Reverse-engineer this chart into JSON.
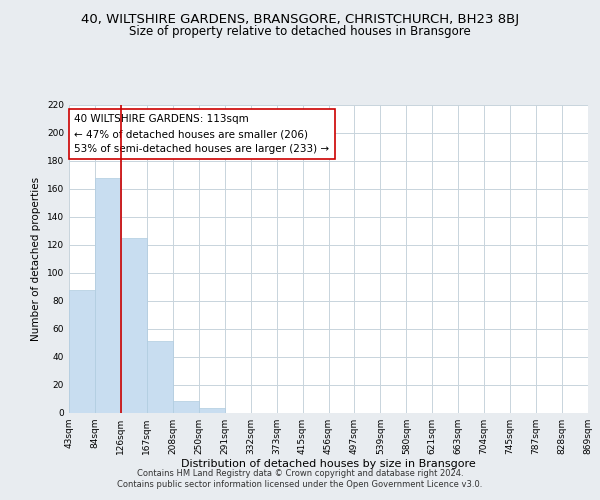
{
  "title": "40, WILTSHIRE GARDENS, BRANSGORE, CHRISTCHURCH, BH23 8BJ",
  "subtitle": "Size of property relative to detached houses in Bransgore",
  "xlabel": "Distribution of detached houses by size in Bransgore",
  "ylabel": "Number of detached properties",
  "bar_values": [
    88,
    168,
    125,
    51,
    8,
    3,
    0,
    0,
    0,
    0,
    0,
    0,
    0,
    0,
    0,
    0,
    0,
    0,
    0,
    0
  ],
  "bar_labels": [
    "43sqm",
    "84sqm",
    "126sqm",
    "167sqm",
    "208sqm",
    "250sqm",
    "291sqm",
    "332sqm",
    "373sqm",
    "415sqm",
    "456sqm",
    "497sqm",
    "539sqm",
    "580sqm",
    "621sqm",
    "663sqm",
    "704sqm",
    "745sqm",
    "787sqm",
    "828sqm",
    "869sqm"
  ],
  "bar_color": "#c8ddf0",
  "bar_edge_color": "#b0cce0",
  "vline_color": "#cc0000",
  "annotation_lines": [
    "40 WILTSHIRE GARDENS: 113sqm",
    "← 47% of detached houses are smaller (206)",
    "53% of semi-detached houses are larger (233) →"
  ],
  "ylim": [
    0,
    220
  ],
  "yticks": [
    0,
    20,
    40,
    60,
    80,
    100,
    120,
    140,
    160,
    180,
    200,
    220
  ],
  "bg_color": "#e8ecf0",
  "plot_bg_color": "#ffffff",
  "grid_color": "#c8d4dc",
  "footer_line1": "Contains HM Land Registry data © Crown copyright and database right 2024.",
  "footer_line2": "Contains public sector information licensed under the Open Government Licence v3.0.",
  "title_fontsize": 9.5,
  "subtitle_fontsize": 8.5,
  "annotation_fontsize": 7.5,
  "xlabel_fontsize": 8,
  "ylabel_fontsize": 7.5,
  "tick_fontsize": 6.5,
  "footer_fontsize": 6
}
